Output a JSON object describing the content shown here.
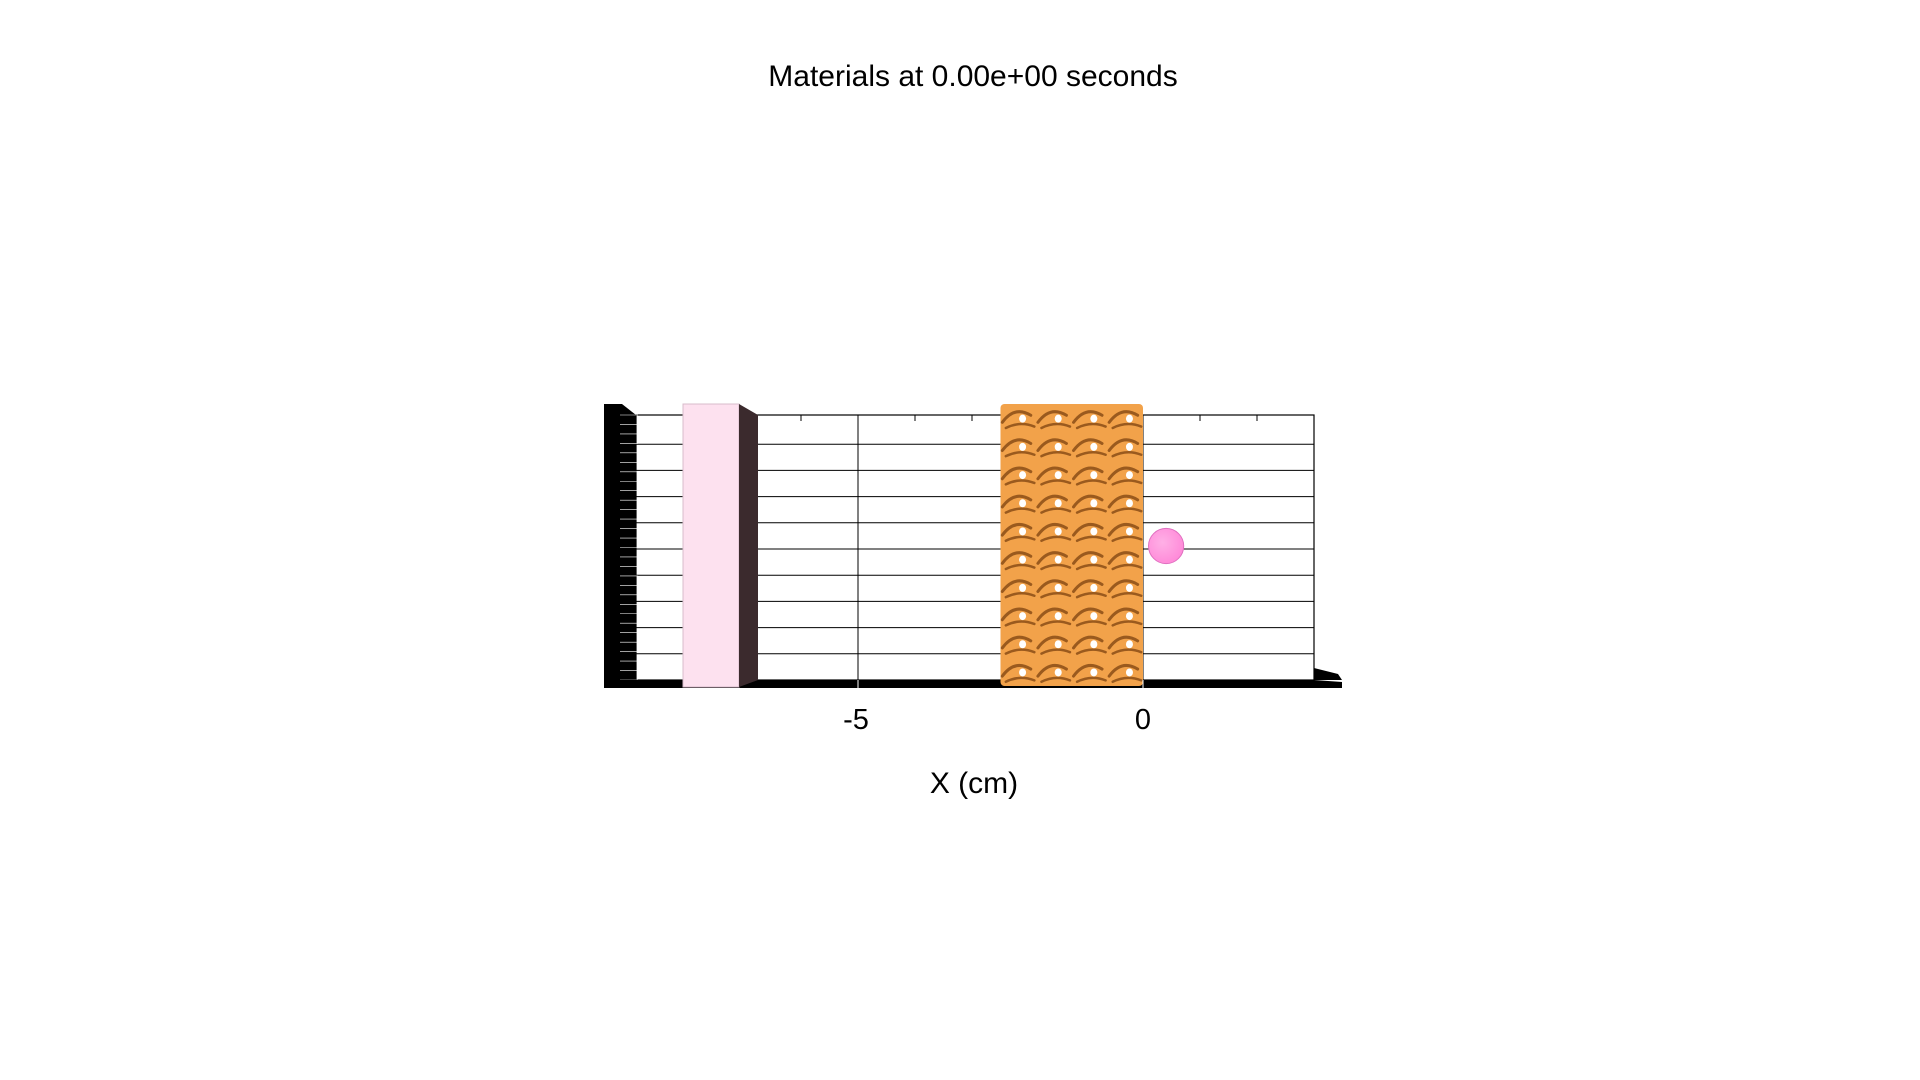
{
  "chart_data": {
    "type": "3d-scene",
    "title": "Materials at 0.00e+00 seconds",
    "xlabel": "X (cm)",
    "ylabel": "",
    "xlim": [
      -9.0,
      3.0
    ],
    "x_ticks": [
      -5,
      0
    ],
    "x_tick_labels": [
      "-5",
      "0"
    ],
    "grid": true,
    "colors": {
      "slab_front": "#fde1ef",
      "slab_side": "#3b2a2d",
      "lattice": "#f2a24a",
      "lattice_shadow": "#9a5a1e",
      "sphere": "#ff88d8",
      "frame": "#000000"
    },
    "objects": [
      {
        "name": "slab",
        "x_min": -8.0,
        "x_max": -7.0,
        "shape": "box"
      },
      {
        "name": "lattice",
        "x_min": -2.5,
        "x_max": 0.0,
        "shape": "gyroid-lattice",
        "rows": 10,
        "cols": 4
      },
      {
        "name": "sphere",
        "x_center": 0.3,
        "radius": 0.3,
        "shape": "sphere"
      }
    ]
  }
}
